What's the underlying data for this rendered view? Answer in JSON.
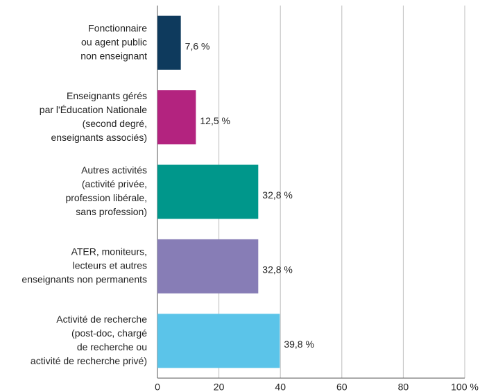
{
  "chart_data": {
    "type": "barh",
    "categories": [
      [
        "Fonctionnaire",
        "ou agent public",
        "non enseignant"
      ],
      [
        "Enseignants gérés",
        "par l'Éducation Nationale",
        "(second degré,",
        "enseignants associés)"
      ],
      [
        "Autres activités",
        "(activité privée,",
        "profession libérale,",
        "sans profession)"
      ],
      [
        "ATER, moniteurs,",
        "lecteurs et autres",
        "enseignants non permanents"
      ],
      [
        "Activité de recherche",
        "(post-doc, chargé",
        "de recherche ou",
        "activité de recherche privé)"
      ]
    ],
    "values": [
      7.6,
      12.5,
      32.8,
      32.8,
      39.8
    ],
    "value_labels": [
      "7,6 %",
      "12,5 %",
      "32,8 %",
      "32,8 %",
      "39,8 %"
    ],
    "colors": [
      "#0e3a5d",
      "#b3237f",
      "#00978b",
      "#877db6",
      "#5bc4e9"
    ],
    "xlim": [
      0,
      100
    ],
    "xticks": [
      0,
      20,
      40,
      60,
      80,
      {
        "value": 100,
        "label": "100 %"
      }
    ],
    "grid": true
  }
}
